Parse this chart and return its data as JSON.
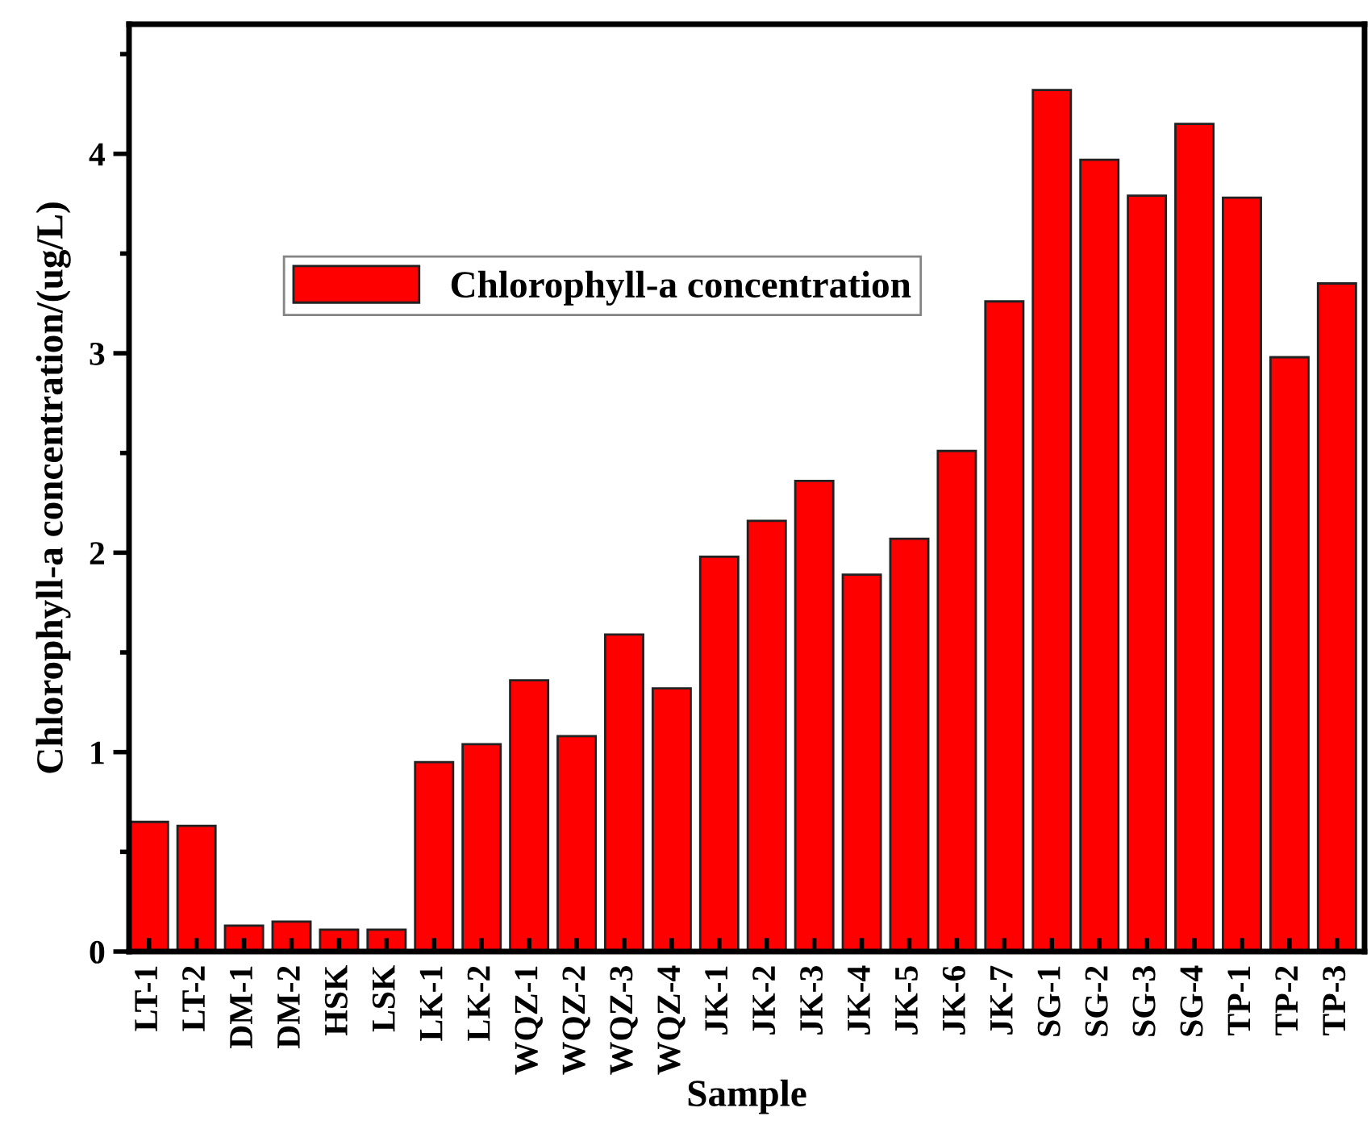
{
  "chart_data": {
    "type": "bar",
    "xlabel": "Sample",
    "ylabel": "Chlorophyll-a concentration/(ug/L)",
    "categories": [
      "LT-1",
      "LT-2",
      "DM-1",
      "DM-2",
      "HSK",
      "LSK",
      "LK-1",
      "LK-2",
      "WQZ-1",
      "WQZ-2",
      "WQZ-3",
      "WQZ-4",
      "JK-1",
      "JK-2",
      "JK-3",
      "JK-4",
      "JK-5",
      "JK-6",
      "JK-7",
      "SG-1",
      "SG-2",
      "SG-3",
      "SG-4",
      "TP-1",
      "TP-2",
      "TP-3"
    ],
    "series": [
      {
        "name": "Chlorophyll-a concentration",
        "color": "#ff0000",
        "values": [
          0.65,
          0.63,
          0.13,
          0.15,
          0.11,
          0.11,
          0.95,
          1.04,
          1.36,
          1.08,
          1.59,
          1.32,
          1.98,
          2.16,
          2.36,
          1.89,
          2.07,
          2.51,
          3.26,
          4.32,
          3.97,
          3.79,
          4.15,
          3.78,
          2.98,
          3.35
        ]
      }
    ],
    "ylim": [
      0,
      4.65
    ],
    "yticks": [
      0,
      1,
      2,
      3,
      4
    ],
    "grid": false,
    "legend": "top left"
  }
}
